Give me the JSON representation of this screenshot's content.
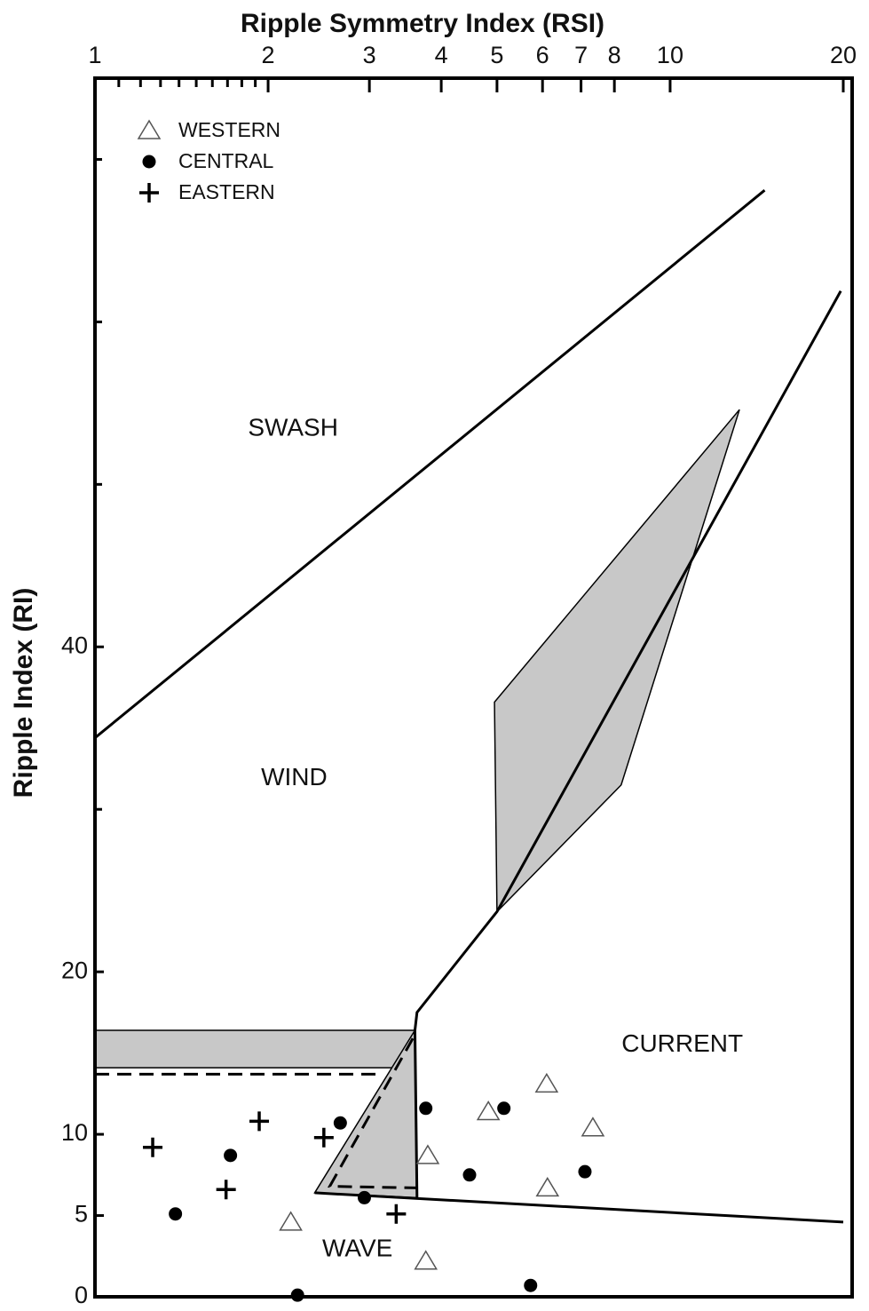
{
  "chart_data": {
    "type": "scatter",
    "title": "Ripple Symmetry Index (RSI)",
    "y_label": "Ripple Index (RI)",
    "x_log": true,
    "xlim": [
      1,
      20
    ],
    "xticks": [
      1,
      2,
      3,
      4,
      5,
      6,
      7,
      8,
      10,
      20
    ],
    "minor_xticks": [
      1.1,
      1.2,
      1.3,
      1.4,
      1.5,
      1.6,
      1.7,
      1.8,
      1.9
    ],
    "ylim": [
      0,
      75
    ],
    "yticks": [
      0,
      5,
      10,
      20,
      40
    ],
    "minor_yticks": [
      30,
      50,
      60,
      70
    ],
    "legend": "upper left",
    "series": [
      {
        "name": "WESTERN",
        "marker": "triangle",
        "color": "#555555",
        "x": [
          2.19,
          3.76,
          3.79,
          4.83,
          6.1,
          7.34,
          6.12
        ],
        "values": [
          4.6,
          2.2,
          8.7,
          11.4,
          13.1,
          10.4,
          6.7
        ]
      },
      {
        "name": "CENTRAL",
        "marker": "circle",
        "color": "#000000",
        "x": [
          1.38,
          1.72,
          2.67,
          2.94,
          3.76,
          2.25,
          4.48,
          5.14,
          5.72,
          7.11
        ],
        "values": [
          5.1,
          8.7,
          10.7,
          6.1,
          11.6,
          0.1,
          7.5,
          11.6,
          0.7,
          7.7
        ]
      },
      {
        "name": "EASTERN",
        "marker": "plus",
        "color": "#000000",
        "x": [
          1.26,
          1.93,
          1.69,
          2.5,
          3.34
        ],
        "values": [
          9.2,
          10.8,
          6.6,
          9.8,
          5.1
        ]
      }
    ],
    "regions": [
      {
        "kind": "fill",
        "color": "#c8c8c8",
        "x": [
          4.95,
          13.2,
          8.22,
          5.0
        ],
        "y": [
          36.6,
          54.6,
          31.5,
          23.7
        ]
      },
      {
        "kind": "fill",
        "color": "#c8c8c8",
        "x": [
          1,
          3.6,
          3.6,
          1
        ],
        "y": [
          16.4,
          16.4,
          14.1,
          14.1
        ]
      },
      {
        "kind": "fill",
        "color": "#c8c8c8",
        "x": [
          2.41,
          3.6,
          3.63
        ],
        "y": [
          6.4,
          16.4,
          6.1
        ]
      },
      {
        "kind": "line",
        "color": "#000000",
        "x": [
          1,
          14.6
        ],
        "y": [
          34.4,
          68.1
        ]
      },
      {
        "kind": "line",
        "color": "#000000",
        "x": [
          19.8,
          5.0,
          3.63,
          3.6,
          3.63
        ],
        "y": [
          61.9,
          23.7,
          17.5,
          16.4,
          6.1
        ]
      },
      {
        "kind": "line",
        "color": "#000000",
        "x": [
          2.41,
          20
        ],
        "y": [
          6.4,
          4.6
        ]
      },
      {
        "kind": "dash",
        "color": "#000000",
        "x": [
          1,
          3.15
        ],
        "y": [
          13.7,
          13.7
        ]
      },
      {
        "kind": "dash",
        "color": "#000000",
        "x": [
          3.57,
          2.56,
          3.63
        ],
        "y": [
          15.9,
          6.8,
          6.7
        ]
      }
    ],
    "annotations": [
      {
        "text": "SWASH",
        "x": 2.21,
        "y": 53.4
      },
      {
        "text": "WIND",
        "x": 2.22,
        "y": 31.9
      },
      {
        "text": "CURRENT",
        "x": 10.5,
        "y": 15.5
      },
      {
        "text": "WAVE",
        "x": 2.86,
        "y": 2.9
      }
    ]
  }
}
